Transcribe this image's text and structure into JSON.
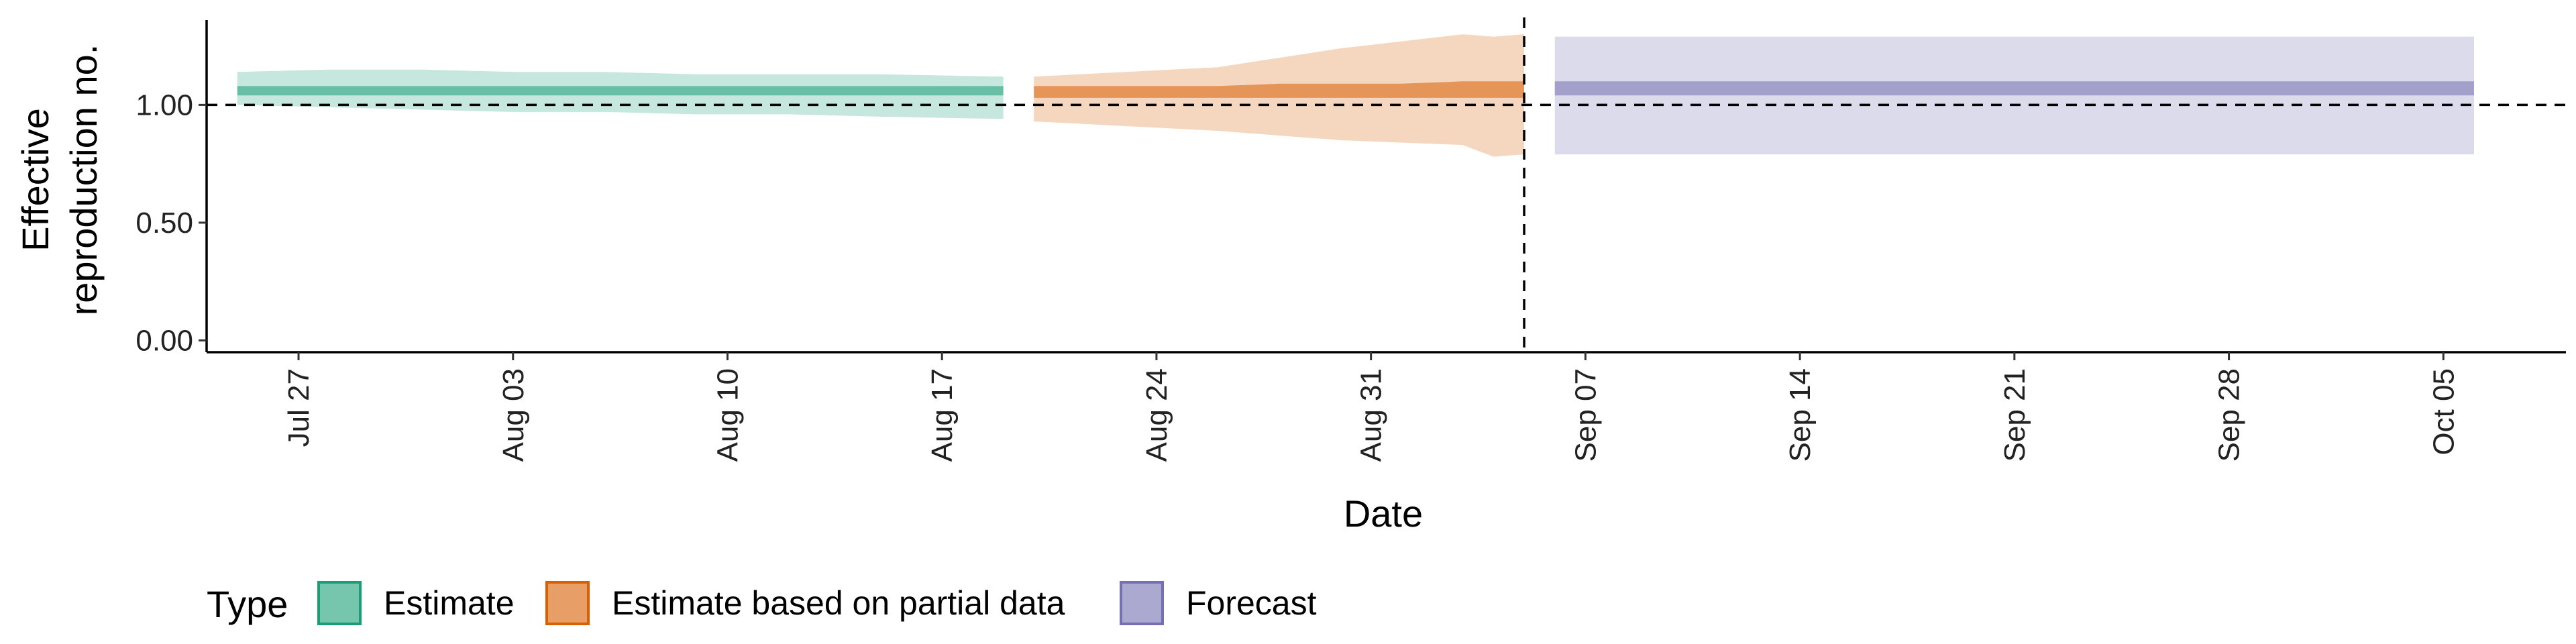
{
  "chart_data": {
    "type": "area",
    "xlabel": "Date",
    "ylabel": [
      "Effective",
      "reproduction no."
    ],
    "ylim": [
      -0.05,
      1.36
    ],
    "xlim": [
      "2020-07-24",
      "2020-10-09"
    ],
    "yticks": [
      0.0,
      0.5,
      1.0
    ],
    "ytick_labels": [
      "0.00",
      "0.50",
      "1.00"
    ],
    "xticks": [
      "2020-07-27",
      "2020-08-03",
      "2020-08-10",
      "2020-08-17",
      "2020-08-24",
      "2020-08-31",
      "2020-09-07",
      "2020-09-14",
      "2020-09-21",
      "2020-09-28",
      "2020-10-05"
    ],
    "xtick_labels": [
      "Jul 27",
      "Aug 03",
      "Aug 10",
      "Aug 17",
      "Aug 24",
      "Aug 31",
      "Sep 07",
      "Sep 14",
      "Sep 21",
      "Sep 28",
      "Oct 05"
    ],
    "reference_line_y": 1.0,
    "vertical_line_x": "2020-09-05",
    "grid": false,
    "legend_position": "bottom",
    "legend_title": "Type",
    "series": [
      {
        "name": "Estimate",
        "color": "#1B9E77",
        "x": [
          "2020-07-25",
          "2020-07-28",
          "2020-07-31",
          "2020-08-03",
          "2020-08-06",
          "2020-08-09",
          "2020-08-12",
          "2020-08-15",
          "2020-08-19"
        ],
        "outer_lower": [
          1.0,
          0.99,
          0.98,
          0.97,
          0.97,
          0.96,
          0.96,
          0.95,
          0.94
        ],
        "outer_upper": [
          1.14,
          1.15,
          1.15,
          1.14,
          1.14,
          1.13,
          1.13,
          1.13,
          1.12
        ],
        "inner_lower": [
          1.04,
          1.04,
          1.04,
          1.04,
          1.04,
          1.04,
          1.04,
          1.04,
          1.04
        ],
        "inner_upper": [
          1.08,
          1.08,
          1.08,
          1.08,
          1.08,
          1.08,
          1.08,
          1.08,
          1.08
        ]
      },
      {
        "name": "Estimate based on partial data",
        "color": "#D95F02",
        "x": [
          "2020-08-20",
          "2020-08-23",
          "2020-08-26",
          "2020-08-28",
          "2020-08-30",
          "2020-09-01",
          "2020-09-03",
          "2020-09-04",
          "2020-09-05"
        ],
        "outer_lower": [
          0.93,
          0.91,
          0.89,
          0.87,
          0.85,
          0.84,
          0.83,
          0.78,
          0.79
        ],
        "outer_upper": [
          1.12,
          1.14,
          1.16,
          1.2,
          1.24,
          1.27,
          1.3,
          1.29,
          1.3
        ],
        "inner_lower": [
          1.03,
          1.03,
          1.03,
          1.03,
          1.03,
          1.03,
          1.03,
          1.03,
          1.03
        ],
        "inner_upper": [
          1.08,
          1.08,
          1.08,
          1.09,
          1.09,
          1.09,
          1.1,
          1.1,
          1.1
        ]
      },
      {
        "name": "Forecast",
        "color": "#7570B3",
        "x": [
          "2020-09-06",
          "2020-10-06"
        ],
        "outer_lower": [
          0.79,
          0.79
        ],
        "outer_upper": [
          1.29,
          1.29
        ],
        "inner_lower": [
          1.04,
          1.04
        ],
        "inner_upper": [
          1.1,
          1.1
        ]
      }
    ]
  }
}
